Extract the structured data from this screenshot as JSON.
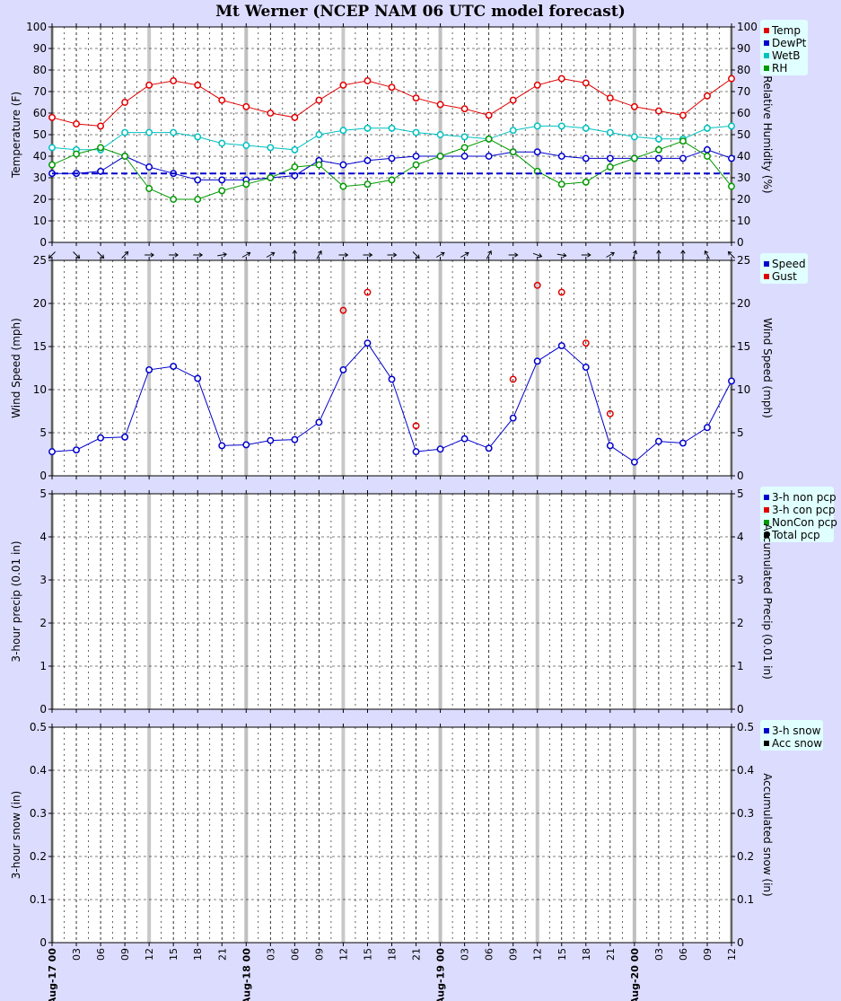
{
  "title": "Mt Werner (NCEP NAM 06 UTC model forecast)",
  "colors": {
    "background": "#dcdcff",
    "temp": "#e00000",
    "dewpt": "#0000cc",
    "wetb": "#00c0c0",
    "rh": "#009900",
    "speed": "#0000cc",
    "gust": "#e00000",
    "legend_bg": "#e0ffff"
  },
  "x_labels": [
    "Aug-17 00",
    "03",
    "06",
    "09",
    "12",
    "15",
    "18",
    "21",
    "Aug-18 00",
    "03",
    "06",
    "09",
    "12",
    "15",
    "18",
    "21",
    "Aug-19 00",
    "03",
    "06",
    "09",
    "12",
    "15",
    "18",
    "21",
    "Aug-20 00",
    "03",
    "06",
    "09",
    "12"
  ],
  "chart_data": [
    {
      "type": "line",
      "panel": "temperature",
      "ylabel": "Temperature (F)",
      "ylabel_right": "Relative Humidity (%)",
      "ylim": [
        0,
        100
      ],
      "yticks": [
        0,
        10,
        20,
        30,
        40,
        50,
        60,
        70,
        80,
        90,
        100
      ],
      "freezing_line": 32,
      "legend": [
        "Temp",
        "DewPt",
        "WetB",
        "RH"
      ],
      "series": [
        {
          "name": "Temp",
          "values": [
            58,
            55,
            54,
            65,
            73,
            75,
            73,
            66,
            63,
            60,
            58,
            66,
            73,
            75,
            72,
            67,
            64,
            62,
            59,
            66,
            73,
            76,
            74,
            67,
            63,
            61,
            59,
            68,
            76
          ]
        },
        {
          "name": "DewPt",
          "values": [
            32,
            32,
            33,
            40,
            35,
            32,
            29,
            29,
            29,
            30,
            31,
            38,
            36,
            38,
            39,
            40,
            40,
            40,
            40,
            42,
            42,
            40,
            39,
            39,
            39,
            39,
            39,
            43,
            39
          ]
        },
        {
          "name": "WetB",
          "values": [
            44,
            43,
            43,
            51,
            51,
            51,
            49,
            46,
            45,
            44,
            43,
            50,
            52,
            53,
            53,
            51,
            50,
            49,
            48,
            52,
            54,
            54,
            53,
            51,
            49,
            48,
            48,
            53,
            54
          ]
        },
        {
          "name": "RH",
          "values": [
            36,
            41,
            44,
            40,
            25,
            20,
            20,
            24,
            27,
            30,
            35,
            36,
            26,
            27,
            29,
            36,
            40,
            44,
            48,
            42,
            33,
            27,
            28,
            35,
            39,
            43,
            47,
            40,
            26
          ]
        }
      ]
    },
    {
      "type": "line",
      "panel": "wind",
      "ylabel": "Wind Speed (mph)",
      "ylabel_right": "Wind Speed (mph)",
      "ylim": [
        0,
        25
      ],
      "yticks": [
        0,
        5,
        10,
        15,
        20,
        25
      ],
      "legend": [
        "Speed",
        "Gust"
      ],
      "series": [
        {
          "name": "Speed",
          "values": [
            2.8,
            3.0,
            4.4,
            4.5,
            12.3,
            12.7,
            11.3,
            3.5,
            3.6,
            4.1,
            4.2,
            6.2,
            12.3,
            15.4,
            11.2,
            2.8,
            3.1,
            4.3,
            3.2,
            6.7,
            13.3,
            15.1,
            12.6,
            3.5,
            1.6,
            4.0,
            3.8,
            5.6,
            11.0
          ]
        },
        {
          "name": "Gust",
          "values": [
            null,
            null,
            null,
            null,
            null,
            null,
            null,
            null,
            null,
            null,
            null,
            null,
            19.2,
            21.3,
            null,
            5.8,
            null,
            null,
            null,
            11.2,
            22.1,
            21.3,
            15.4,
            7.2,
            null,
            null,
            null,
            null,
            null
          ]
        }
      ],
      "wind_direction_deg": [
        225,
        135,
        135,
        45,
        90,
        90,
        90,
        80,
        60,
        60,
        0,
        30,
        90,
        90,
        90,
        135,
        60,
        60,
        30,
        90,
        110,
        100,
        90,
        60,
        20,
        0,
        0,
        330,
        315
      ]
    },
    {
      "type": "bar",
      "panel": "precip",
      "ylabel": "3-hour precip (0.01 in)",
      "ylabel_right": "Accumulated Precip (0.01 in)",
      "ylim": [
        0,
        5
      ],
      "yticks": [
        0,
        1,
        2,
        3,
        4,
        5
      ],
      "legend": [
        "3-h non pcp",
        "3-h con pcp",
        "NonCon pcp",
        "Total pcp"
      ],
      "series": []
    },
    {
      "type": "bar",
      "panel": "snow",
      "ylabel": "3-hour snow (in)",
      "ylabel_right": "Accumulated snow (in)",
      "ylim": [
        0,
        0.5
      ],
      "yticks": [
        "0",
        "0.1",
        "0.2",
        "0.3",
        "0.4",
        "0.5"
      ],
      "legend": [
        "3-h snow",
        "Acc snow"
      ],
      "series": []
    }
  ]
}
